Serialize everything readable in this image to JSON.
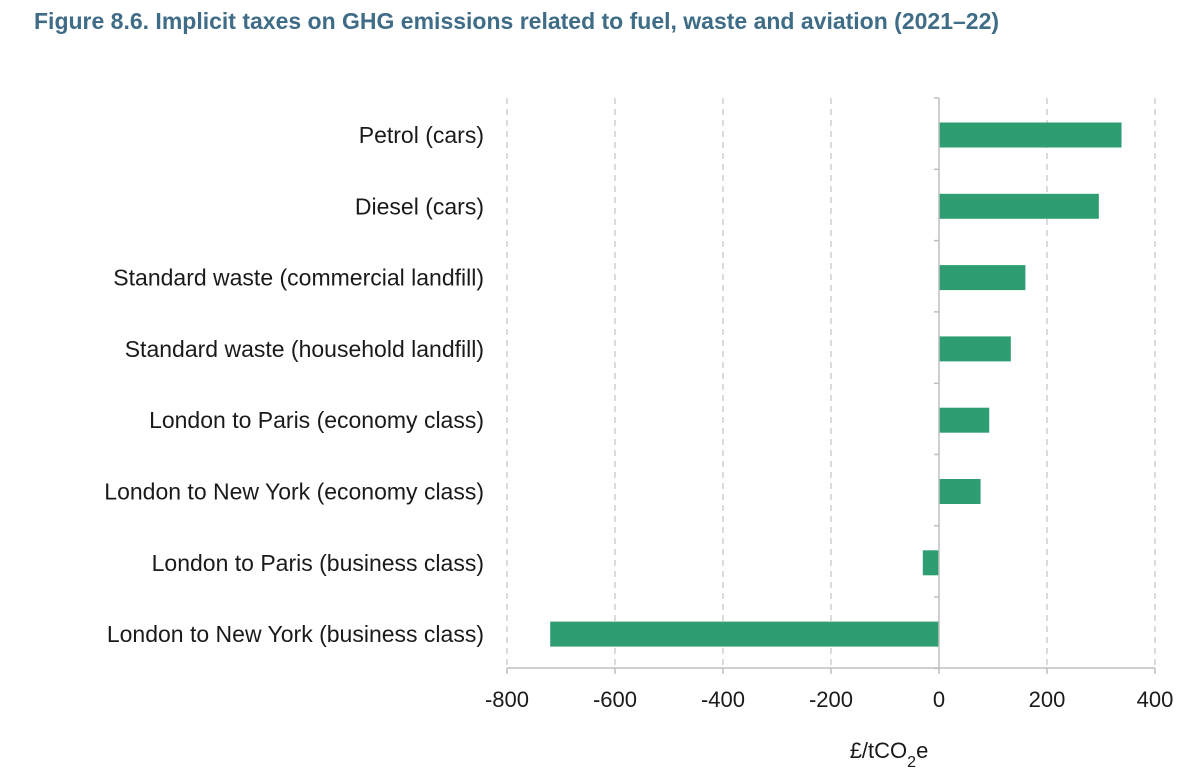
{
  "figure": {
    "title": "Figure 8.6. Implicit taxes on GHG emissions related to fuel, waste and aviation (2021–22)"
  },
  "colors": {
    "title": "#3f6c86",
    "bar": "#2e9e72",
    "grid": "#c8c8c8",
    "axis": "#bfbfbf",
    "text": "#1a1a1a"
  },
  "chart_data": {
    "type": "bar",
    "orientation": "horizontal",
    "title": "Figure 8.6. Implicit taxes on GHG emissions related to fuel, waste and aviation (2021–22)",
    "categories": [
      "Petrol (cars)",
      "Diesel (cars)",
      "Standard waste (commercial landfill)",
      "Standard waste (household landfill)",
      "London to Paris (economy class)",
      "London to New York (economy class)",
      "London to Paris (business class)",
      "London to New York (business class)"
    ],
    "values": [
      338,
      296,
      160,
      133,
      93,
      77,
      -30,
      -720
    ],
    "xlabel": "£/tCO2e",
    "xlabel_main": "£/tCO",
    "xlabel_sub": "2",
    "xlabel_tail": "e",
    "xlim": [
      -800,
      400
    ],
    "xticks": [
      -800,
      -600,
      -400,
      -200,
      0,
      200,
      400
    ],
    "xtick_labels": [
      "-800",
      "-600",
      "-400",
      "-200",
      "0",
      "200",
      "400"
    ],
    "grid": "vertical dashed",
    "legend": "none"
  }
}
